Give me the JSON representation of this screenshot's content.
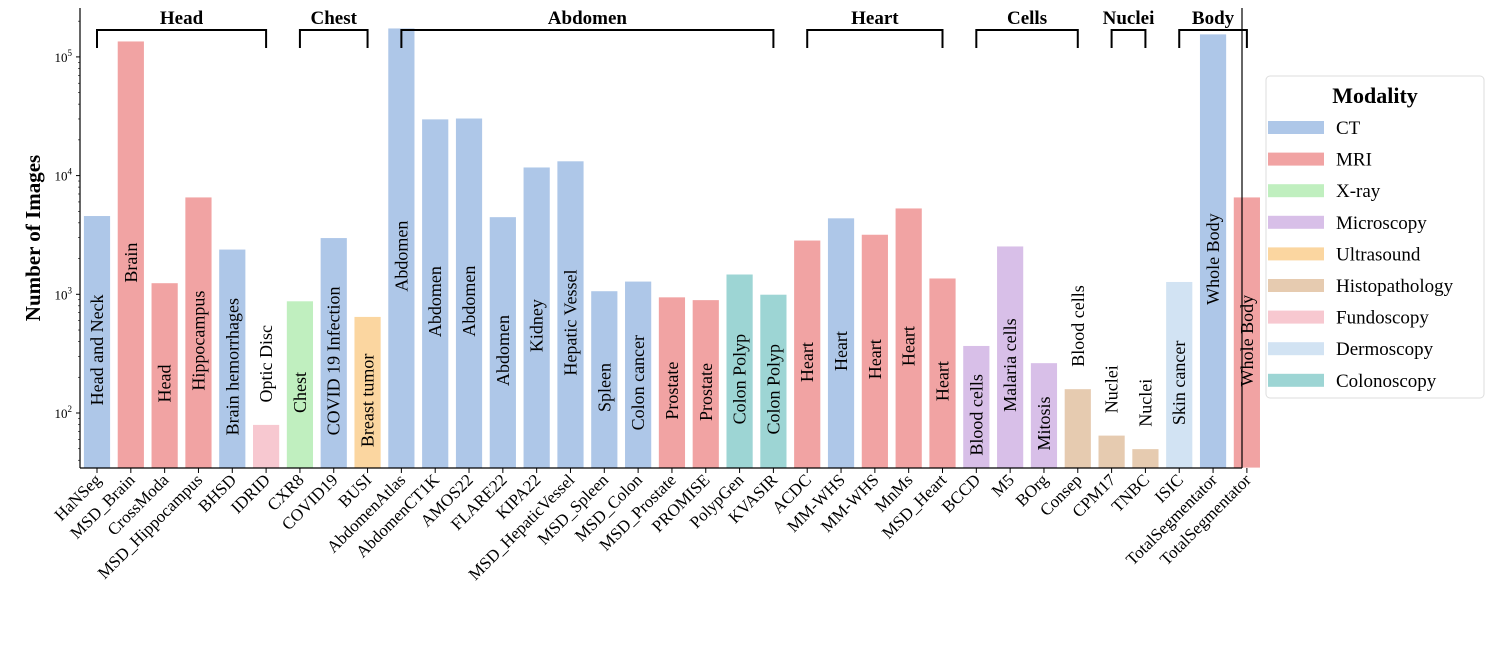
{
  "chart_data": {
    "type": "bar",
    "ylabel": "Number of Images",
    "yscale": "log",
    "ylim": [
      34,
      257000
    ],
    "yticks": [
      {
        "exp": "2",
        "value": 100
      },
      {
        "exp": "3",
        "value": 1000
      },
      {
        "exp": "4",
        "value": 10000
      },
      {
        "exp": "5",
        "value": 100000
      }
    ],
    "grid": false,
    "legend": {
      "title": "Modality",
      "placement": "right",
      "entries": [
        {
          "name": "CT",
          "color": "#aec7e8"
        },
        {
          "name": "MRI",
          "color": "#f1a3a3"
        },
        {
          "name": "X-ray",
          "color": "#c0efbf"
        },
        {
          "name": "Microscopy",
          "color": "#d8bfe8"
        },
        {
          "name": "Ultrasound",
          "color": "#fbd6a0"
        },
        {
          "name": "Histopathology",
          "color": "#e6cbb0"
        },
        {
          "name": "Fundoscopy",
          "color": "#f7c8d0"
        },
        {
          "name": "Dermoscopy",
          "color": "#d2e3f3"
        },
        {
          "name": "Colonoscopy",
          "color": "#9dd5d4"
        }
      ]
    },
    "groups": [
      {
        "name": "Head",
        "first": 0,
        "last": 5
      },
      {
        "name": "Chest",
        "first": 6,
        "last": 8
      },
      {
        "name": "Abdomen",
        "first": 9,
        "last": 20
      },
      {
        "name": "Heart",
        "first": 21,
        "last": 25
      },
      {
        "name": "Cells",
        "first": 26,
        "last": 29
      },
      {
        "name": "Nuclei",
        "first": 30,
        "last": 31
      },
      {
        "name": "Body",
        "first": 32,
        "last": 34
      }
    ],
    "bars": [
      {
        "dataset": "HaNSeg",
        "modality": "CT",
        "label": "Head and Neck",
        "value": 4600
      },
      {
        "dataset": "MSD_Brain",
        "modality": "MRI",
        "label": "Brain",
        "value": 136000
      },
      {
        "dataset": "CrossModa",
        "modality": "MRI",
        "label": "Head",
        "value": 1250
      },
      {
        "dataset": "MSD_Hippocampus",
        "modality": "MRI",
        "label": "Hippocampus",
        "value": 6600
      },
      {
        "dataset": "BHSD",
        "modality": "CT",
        "label": "Brain hemorrhages",
        "value": 2400
      },
      {
        "dataset": "IDRID",
        "modality": "Fundoscopy",
        "label": "Optic Disc",
        "value": 80
      },
      {
        "dataset": "CXR8",
        "modality": "X-ray",
        "label": "Chest",
        "value": 880
      },
      {
        "dataset": "COVID19",
        "modality": "CT",
        "label": "COVID 19 Infection",
        "value": 3000
      },
      {
        "dataset": "BUSI",
        "modality": "Ultrasound",
        "label": "Breast tumor",
        "value": 650
      },
      {
        "dataset": "AbdomenAtlas",
        "modality": "CT",
        "label": "Abdomen",
        "value": 175000
      },
      {
        "dataset": "AbdomenCT1K",
        "modality": "CT",
        "label": "Abdomen",
        "value": 30000
      },
      {
        "dataset": "AMOS22",
        "modality": "CT",
        "label": "Abdomen",
        "value": 30500
      },
      {
        "dataset": "FLARE22",
        "modality": "CT",
        "label": "Abdomen",
        "value": 4500
      },
      {
        "dataset": "KIPA22",
        "modality": "CT",
        "label": "Kidney",
        "value": 11800
      },
      {
        "dataset": "MSD_HepaticVessel",
        "modality": "CT",
        "label": "Hepatic Vessel",
        "value": 13300
      },
      {
        "dataset": "MSD_Spleen",
        "modality": "CT",
        "label": "Spleen",
        "value": 1070
      },
      {
        "dataset": "MSD_Colon",
        "modality": "CT",
        "label": "Colon cancer",
        "value": 1290
      },
      {
        "dataset": "MSD_Prostate",
        "modality": "MRI",
        "label": "Prostate",
        "value": 950
      },
      {
        "dataset": "PROMISE",
        "modality": "MRI",
        "label": "Prostate",
        "value": 900
      },
      {
        "dataset": "PolypGen",
        "modality": "Colonoscopy",
        "label": "Colon Polyp",
        "value": 1480
      },
      {
        "dataset": "KVASIR",
        "modality": "Colonoscopy",
        "label": "Colon Polyp",
        "value": 1000
      },
      {
        "dataset": "ACDC",
        "modality": "MRI",
        "label": "Heart",
        "value": 2860
      },
      {
        "dataset": "MM-WHS",
        "modality": "CT",
        "label": "Heart",
        "value": 4400
      },
      {
        "dataset": "MM-WHS",
        "modality": "MRI",
        "label": "Heart",
        "value": 3200
      },
      {
        "dataset": "MnMs",
        "modality": "MRI",
        "label": "Heart",
        "value": 5330
      },
      {
        "dataset": "MSD_Heart",
        "modality": "MRI",
        "label": "Heart",
        "value": 1370
      },
      {
        "dataset": "BCCD",
        "modality": "Microscopy",
        "label": "Blood cells",
        "value": 370
      },
      {
        "dataset": "M5",
        "modality": "Microscopy",
        "label": "Malaria cells",
        "value": 2550
      },
      {
        "dataset": "BOrg",
        "modality": "Microscopy",
        "label": "Mitosis",
        "value": 265
      },
      {
        "dataset": "Consep",
        "modality": "Histopathology",
        "label": "Blood cells",
        "value": 160
      },
      {
        "dataset": "CPM17",
        "modality": "Histopathology",
        "label": "Nuclei",
        "value": 65
      },
      {
        "dataset": "TNBC",
        "modality": "Histopathology",
        "label": "Nuclei",
        "value": 50
      },
      {
        "dataset": "ISIC",
        "modality": "Dermoscopy",
        "label": "Skin cancer",
        "value": 1280
      },
      {
        "dataset": "TotalSegmentator",
        "modality": "CT",
        "label": "Whole Body",
        "value": 156000
      },
      {
        "dataset": "TotalSegmentator",
        "modality": "MRI",
        "label": "Whole Body",
        "value": 6600
      }
    ]
  }
}
